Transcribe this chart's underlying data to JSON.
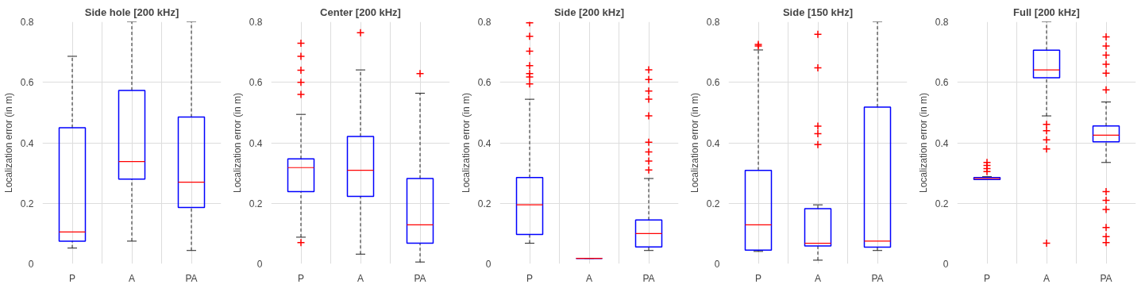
{
  "chart_data": [
    {
      "type": "box",
      "title": "Side hole [200 kHz]",
      "ylabel": "Localization error (in m)",
      "categories": [
        "P",
        "A",
        "PA"
      ],
      "ylim": [
        0,
        0.8
      ],
      "yticks": [
        0,
        0.2,
        0.4,
        0.6,
        0.8
      ],
      "grid": true,
      "marker": "cross",
      "boxes": [
        {
          "low": 0.052,
          "q1": 0.075,
          "median": 0.105,
          "q3": 0.45,
          "high": 0.686
        },
        {
          "low": 0.075,
          "q1": 0.28,
          "median": 0.338,
          "q3": 0.573,
          "high": 0.8
        },
        {
          "low": 0.044,
          "q1": 0.186,
          "median": 0.27,
          "q3": 0.485,
          "high": 0.8
        }
      ]
    },
    {
      "type": "box",
      "title": "Center [200 kHz]",
      "ylabel": "Localization error (in m)",
      "categories": [
        "P",
        "A",
        "PA"
      ],
      "ylim": [
        0,
        0.8
      ],
      "yticks": [
        0,
        0.2,
        0.4,
        0.6,
        0.8
      ],
      "grid": true,
      "marker": "cross",
      "boxes": [
        {
          "low": 0.088,
          "q1": 0.239,
          "median": 0.318,
          "q3": 0.347,
          "high": 0.494,
          "outliers": [
            0.729,
            0.686,
            0.64,
            0.6,
            0.56,
            0.07
          ]
        },
        {
          "low": 0.032,
          "q1": 0.223,
          "median": 0.309,
          "q3": 0.421,
          "high": 0.641,
          "outliers": [
            0.764
          ]
        },
        {
          "low": 0.006,
          "q1": 0.068,
          "median": 0.129,
          "q3": 0.282,
          "high": 0.564,
          "outliers": [
            0.629
          ]
        }
      ]
    },
    {
      "type": "box",
      "title": "Side [200 kHz]",
      "ylabel": "Localization error (in m)",
      "categories": [
        "P",
        "A",
        "PA"
      ],
      "ylim": [
        0,
        0.8
      ],
      "yticks": [
        0,
        0.2,
        0.4,
        0.6,
        0.8
      ],
      "grid": true,
      "marker": "cross",
      "boxes": [
        {
          "low": 0.068,
          "q1": 0.097,
          "median": 0.195,
          "q3": 0.285,
          "high": 0.544,
          "outliers": [
            0.797,
            0.752,
            0.703,
            0.655,
            0.629,
            0.618,
            0.595
          ]
        },
        {
          "low": 0.018,
          "q1": 0.018,
          "median": 0.018,
          "q3": 0.018,
          "high": 0.018
        },
        {
          "low": 0.044,
          "q1": 0.056,
          "median": 0.1,
          "q3": 0.145,
          "high": 0.282,
          "outliers": [
            0.641,
            0.609,
            0.571,
            0.544,
            0.489,
            0.402,
            0.37,
            0.34,
            0.31
          ]
        }
      ]
    },
    {
      "type": "box",
      "title": "Side [150 kHz]",
      "ylabel": "Localization error (in m)",
      "categories": [
        "P",
        "A",
        "PA"
      ],
      "ylim": [
        0,
        0.8
      ],
      "yticks": [
        0,
        0.2,
        0.4,
        0.6,
        0.8
      ],
      "grid": true,
      "marker": "cross",
      "boxes": [
        {
          "low": 0.041,
          "q1": 0.045,
          "median": 0.129,
          "q3": 0.309,
          "high": 0.707,
          "outliers": [
            0.725,
            0.72
          ]
        },
        {
          "low": 0.012,
          "q1": 0.059,
          "median": 0.068,
          "q3": 0.182,
          "high": 0.195,
          "outliers": [
            0.759,
            0.648,
            0.455,
            0.43,
            0.394
          ]
        },
        {
          "low": 0.044,
          "q1": 0.055,
          "median": 0.075,
          "q3": 0.518,
          "high": 0.8
        }
      ]
    },
    {
      "type": "box",
      "title": "Full [200 kHz]",
      "ylabel": "Localization error (in m)",
      "categories": [
        "P",
        "A",
        "PA"
      ],
      "ylim": [
        0,
        0.8
      ],
      "yticks": [
        0,
        0.2,
        0.4,
        0.6,
        0.8
      ],
      "grid": true,
      "marker": "cross",
      "boxes": [
        {
          "low": 0.278,
          "q1": 0.279,
          "median": 0.282,
          "q3": 0.285,
          "high": 0.288,
          "outliers": [
            0.335,
            0.325,
            0.315,
            0.305
          ]
        },
        {
          "low": 0.489,
          "q1": 0.615,
          "median": 0.641,
          "q3": 0.706,
          "high": 0.8,
          "outliers": [
            0.461,
            0.44,
            0.41,
            0.38,
            0.068
          ]
        },
        {
          "low": 0.335,
          "q1": 0.403,
          "median": 0.425,
          "q3": 0.456,
          "high": 0.535,
          "outliers": [
            0.75,
            0.72,
            0.69,
            0.66,
            0.63,
            0.575,
            0.239,
            0.21,
            0.18,
            0.12,
            0.09,
            0.07
          ]
        }
      ]
    }
  ]
}
